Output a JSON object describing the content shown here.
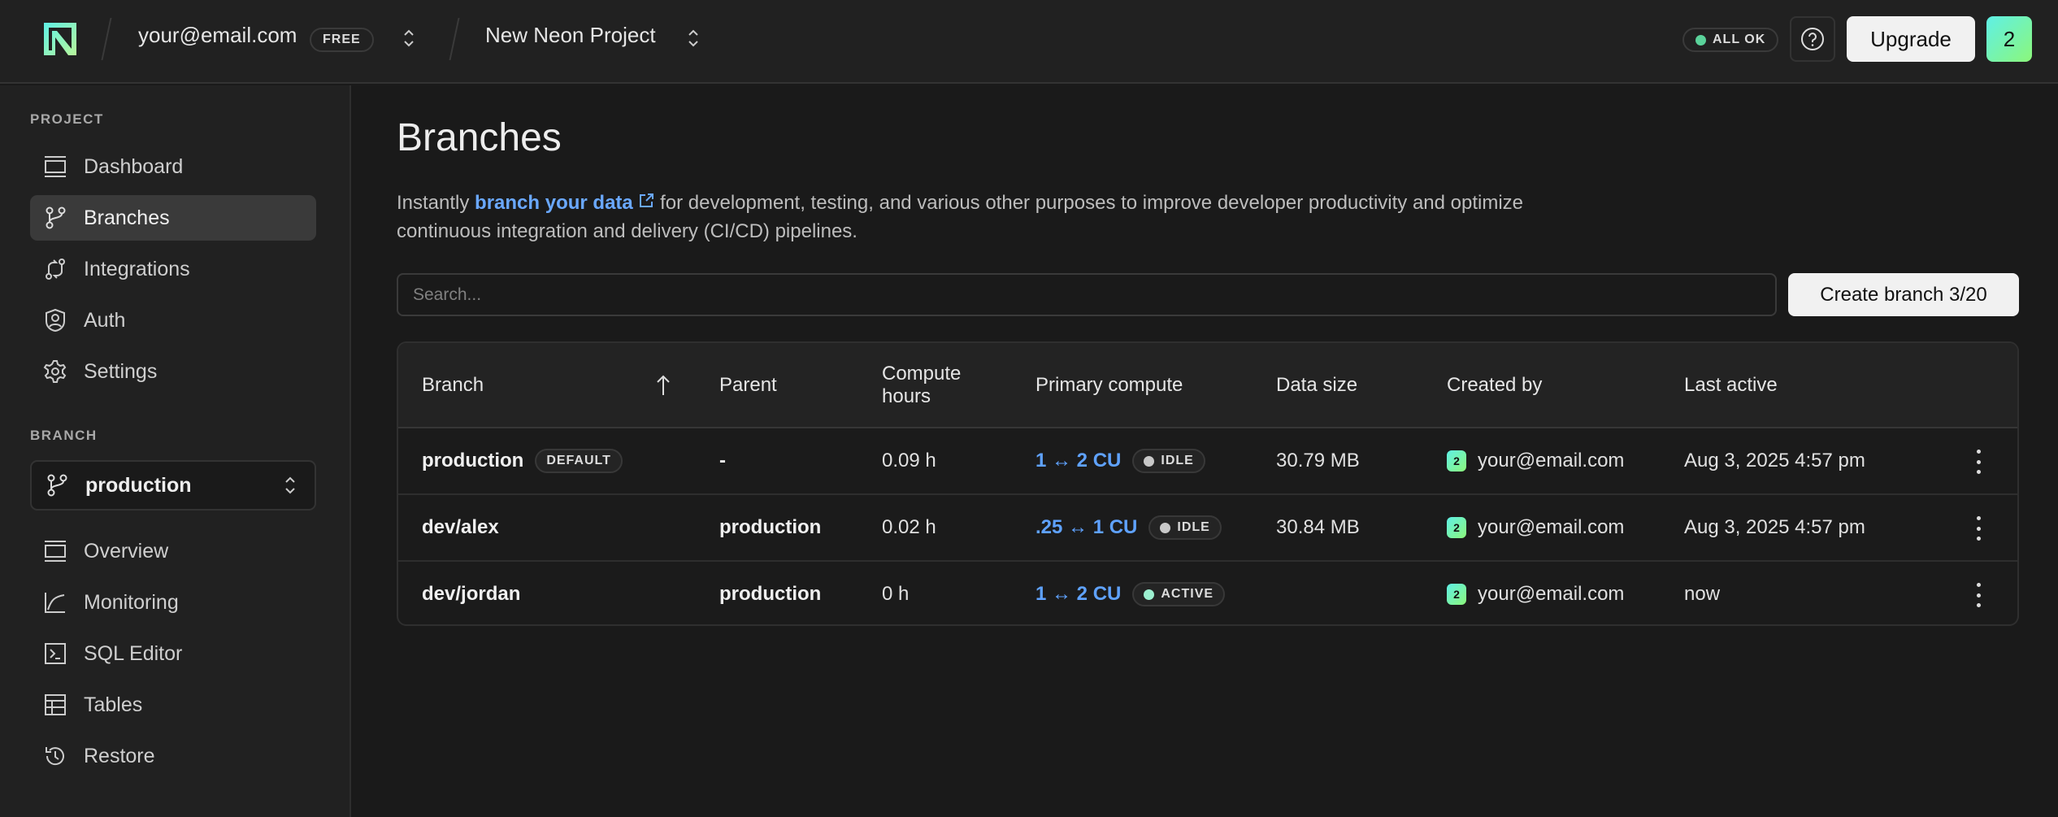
{
  "header": {
    "account": "your@email.com",
    "plan_badge": "FREE",
    "project": "New Neon Project",
    "status": "ALL OK",
    "status_color": "#5ad29a",
    "upgrade": "Upgrade",
    "avatar": "2"
  },
  "sidebar": {
    "project_label": "PROJECT",
    "project_items": [
      {
        "label": "Dashboard",
        "icon": "dashboard-icon"
      },
      {
        "label": "Branches",
        "icon": "branch-icon",
        "active": true
      },
      {
        "label": "Integrations",
        "icon": "integrations-icon"
      },
      {
        "label": "Auth",
        "icon": "auth-shield-icon"
      },
      {
        "label": "Settings",
        "icon": "gear-icon"
      }
    ],
    "branch_label": "BRANCH",
    "branch_selected": "production",
    "branch_items": [
      {
        "label": "Overview",
        "icon": "overview-icon"
      },
      {
        "label": "Monitoring",
        "icon": "monitoring-icon"
      },
      {
        "label": "SQL Editor",
        "icon": "sql-editor-icon"
      },
      {
        "label": "Tables",
        "icon": "tables-icon"
      },
      {
        "label": "Restore",
        "icon": "restore-icon"
      }
    ]
  },
  "main": {
    "title": "Branches",
    "desc_pre": "Instantly ",
    "desc_link": "branch your data",
    "desc_post": " for development, testing, and various other purposes to improve developer productivity and optimize continuous integration and delivery (CI/CD) pipelines.",
    "search_placeholder": "Search...",
    "create_button": "Create branch 3/20",
    "columns": [
      "Branch",
      "Parent",
      "Compute hours",
      "Primary compute",
      "Data size",
      "Created by",
      "Last active"
    ],
    "rows": [
      {
        "branch": "production",
        "badge": "DEFAULT",
        "parent": "-",
        "hours": "0.09 h",
        "compute": "1 ↔ 2 CU",
        "state": "IDLE",
        "size": "30.79 MB",
        "avatar": "2",
        "creator": "your@email.com",
        "last": "Aug 3, 2025 4:57 pm"
      },
      {
        "branch": "dev/alex",
        "parent": "production",
        "hours": "0.02 h",
        "compute": ".25 ↔ 1 CU",
        "state": "IDLE",
        "size": "30.84 MB",
        "avatar": "2",
        "creator": "your@email.com",
        "last": "Aug 3, 2025 4:57 pm"
      },
      {
        "branch": "dev/jordan",
        "parent": "production",
        "hours": "0 h",
        "compute": "1 ↔ 2 CU",
        "state": "ACTIVE",
        "size": "",
        "avatar": "2",
        "creator": "your@email.com",
        "last": "now"
      }
    ]
  }
}
